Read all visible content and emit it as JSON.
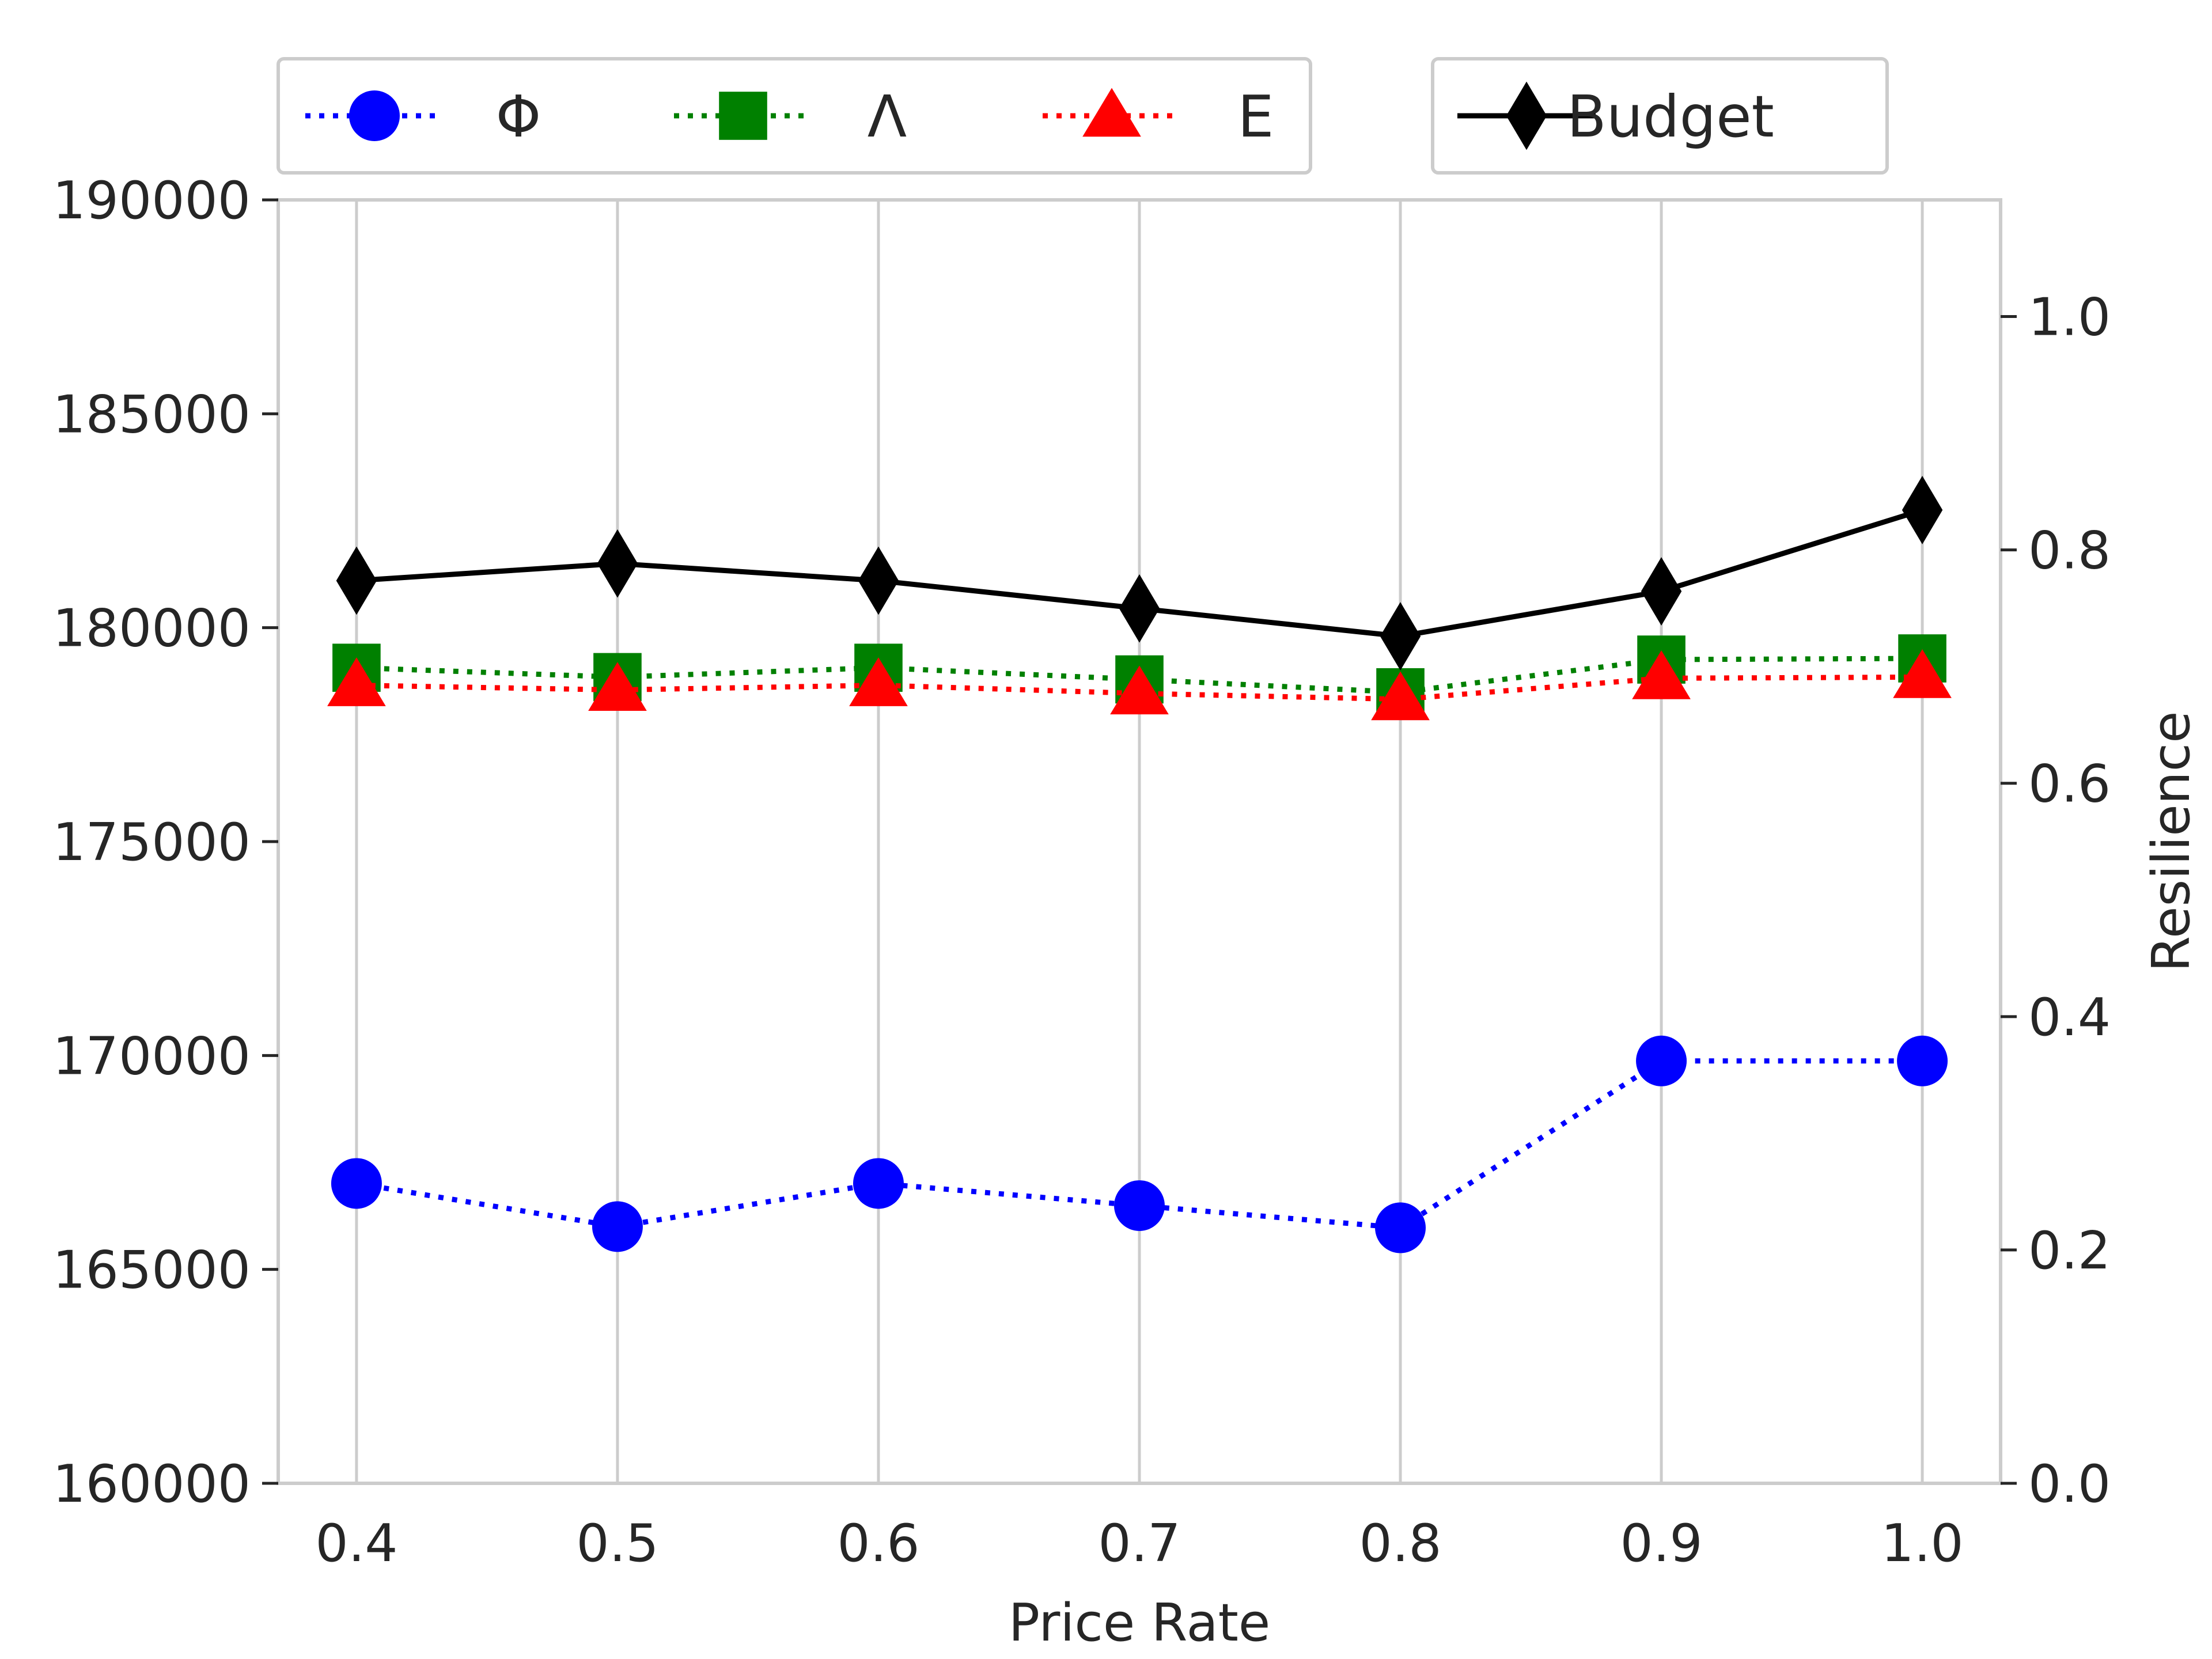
{
  "chart_data": {
    "type": "line",
    "xlabel": "Price Rate",
    "ylabel_left": "",
    "ylabel_right": "Resilience",
    "x": [
      0.4,
      0.5,
      0.6,
      0.7,
      0.8,
      0.9,
      1.0
    ],
    "x_tick_labels": [
      "0.4",
      "0.5",
      "0.6",
      "0.7",
      "0.8",
      "0.9",
      "1.0"
    ],
    "xlim": [
      0.37,
      1.03
    ],
    "left_axis": {
      "ylim": [
        160000,
        190000
      ],
      "tick_values": [
        160000,
        165000,
        170000,
        175000,
        180000,
        185000,
        190000
      ],
      "tick_labels": [
        "160000",
        "165000",
        "170000",
        "175000",
        "180000",
        "185000",
        "190000"
      ]
    },
    "right_axis": {
      "ylim": [
        0.0,
        1.1
      ],
      "tick_values": [
        0.0,
        0.2,
        0.4,
        0.6,
        0.8,
        1.0
      ],
      "tick_labels": [
        "0.0",
        "0.2",
        "0.4",
        "0.6",
        "0.8",
        "1.0"
      ]
    },
    "grid": "vertical",
    "series": [
      {
        "name": "Φ",
        "axis": "right",
        "color": "#0000ff",
        "marker": "circle",
        "linestyle": "dotted",
        "values": [
          0.257,
          0.22,
          0.257,
          0.238,
          0.219,
          0.362,
          0.362
        ]
      },
      {
        "name": "Λ",
        "axis": "right",
        "color": "#008000",
        "marker": "square",
        "linestyle": "dotted",
        "values": [
          0.699,
          0.691,
          0.699,
          0.689,
          0.678,
          0.706,
          0.707
        ]
      },
      {
        "name": "Ε",
        "axis": "right",
        "color": "#ff0000",
        "marker": "triangle",
        "linestyle": "dotted",
        "values": [
          0.684,
          0.68,
          0.684,
          0.677,
          0.672,
          0.69,
          0.691
        ]
      },
      {
        "name": "Budget",
        "axis": "left",
        "color": "#000000",
        "marker": "diamond",
        "linestyle": "solid",
        "values": [
          181100,
          181500,
          181100,
          180450,
          179800,
          180850,
          182750
        ]
      }
    ],
    "legend": [
      {
        "placement": "top-left",
        "entries": [
          "Φ",
          "Λ",
          "Ε"
        ]
      },
      {
        "placement": "top-right",
        "entries": [
          "Budget"
        ]
      }
    ]
  }
}
